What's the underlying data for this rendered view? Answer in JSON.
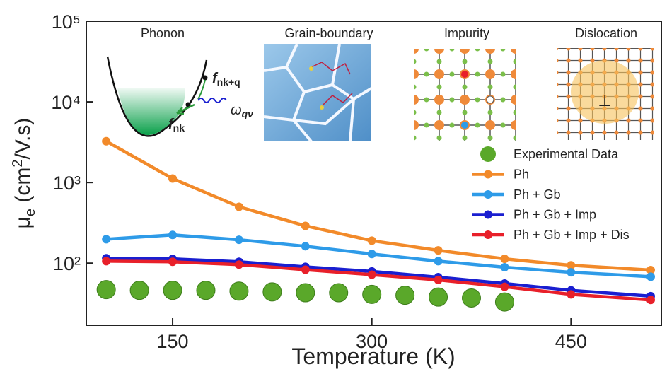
{
  "chart_data": {
    "type": "line",
    "x_label": "Temperature (K)",
    "y_label": [
      "μ",
      "e",
      " (cm",
      "2",
      "/V.s)"
    ],
    "xlim": [
      85,
      518
    ],
    "xticks": [
      150,
      300,
      450
    ],
    "ylim": [
      17,
      100000
    ],
    "yticks": [
      {
        "value": 100,
        "label": "10²"
      },
      {
        "value": 1000,
        "label": "10³"
      },
      {
        "value": 10000,
        "label": "10⁴"
      },
      {
        "value": 100000,
        "label": "10⁵"
      }
    ],
    "y_scale": "log",
    "grid": false,
    "legend": "right",
    "insets": [
      {
        "title": "Phonon"
      },
      {
        "title": "Grain-boundary"
      },
      {
        "title": "Impurity"
      },
      {
        "title": "Dislocation"
      }
    ],
    "annotations": [
      [
        "f",
        "nk+q"
      ],
      [
        "f",
        "nk"
      ],
      [
        "ω",
        "qν"
      ]
    ],
    "series": [
      {
        "name": "Experimental Data",
        "color": "#5aa82a",
        "mode": "markers",
        "x": [
          100,
          125,
          150,
          175,
          200,
          225,
          250,
          275,
          300,
          325,
          350,
          375,
          400
        ],
        "values": [
          47,
          46,
          46,
          46,
          45,
          44,
          43,
          43,
          41,
          40,
          38,
          37,
          33
        ]
      },
      {
        "name": "Ph",
        "color": "#f28a2a",
        "mode": "lines+markers",
        "x": [
          100,
          150,
          200,
          250,
          300,
          350,
          400,
          450,
          510
        ],
        "values": [
          3250,
          1120,
          500,
          290,
          190,
          144,
          113,
          94,
          82
        ]
      },
      {
        "name": "Ph + Gb",
        "color": "#2e9be8",
        "mode": "lines+markers",
        "x": [
          100,
          150,
          200,
          250,
          300,
          350,
          400,
          450,
          510
        ],
        "values": [
          198,
          224,
          195,
          162,
          130,
          106,
          89,
          77,
          68
        ]
      },
      {
        "name": "Ph + Gb + Imp",
        "color": "#1a1fd0",
        "mode": "lines+markers",
        "x": [
          100,
          150,
          200,
          250,
          300,
          350,
          400,
          450,
          510
        ],
        "values": [
          115,
          113,
          104,
          90,
          79,
          67,
          56,
          46,
          39
        ]
      },
      {
        "name": "Ph + Gb + Imp + Dis",
        "color": "#e8202a",
        "mode": "lines+markers",
        "x": [
          100,
          150,
          200,
          250,
          300,
          350,
          400,
          450,
          510
        ],
        "values": [
          106,
          104,
          96,
          83,
          72,
          62,
          51,
          41,
          35
        ]
      }
    ]
  }
}
